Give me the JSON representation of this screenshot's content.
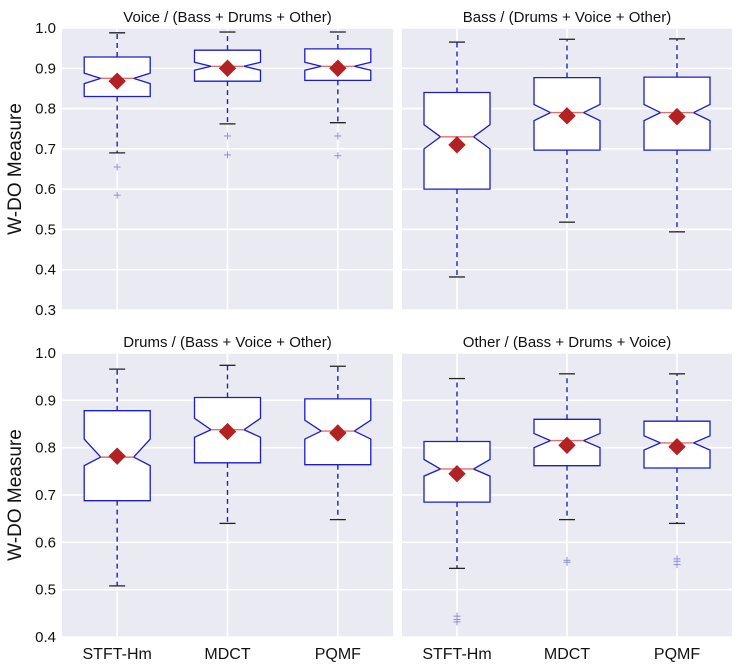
{
  "chart_data": {
    "type": "boxplot",
    "ylabel": "W-DO Measure",
    "categories": [
      "STFT-Hm",
      "MDCT",
      "PQMF"
    ],
    "colors": {
      "panel_bg": "#eaeaf2",
      "grid": "#ffffff",
      "box_edge": "#1c1cc8",
      "box_fill": "#ffffff",
      "whisker": "#1c1cc8",
      "cap": "#222222",
      "median": "#e07070",
      "mean_marker": "#b22222",
      "flier": "#8f8fd8"
    },
    "panels": [
      {
        "title": "Voice / (Bass + Drums + Other)",
        "ylim": [
          0.3,
          1.0
        ],
        "yticks": [
          "0.3",
          "0.4",
          "0.5",
          "0.6",
          "0.7",
          "0.8",
          "0.9",
          "1.0"
        ],
        "show_yticklabels": true,
        "show_xticklabels": false,
        "boxes": [
          {
            "whislo": 0.69,
            "q1": 0.83,
            "med": 0.875,
            "q3": 0.928,
            "whishi": 0.988,
            "mean": 0.868,
            "notch_lo": 0.862,
            "notch_hi": 0.888,
            "fliers": [
              0.655,
              0.585
            ]
          },
          {
            "whislo": 0.762,
            "q1": 0.868,
            "med": 0.905,
            "q3": 0.945,
            "whishi": 0.99,
            "mean": 0.9,
            "notch_lo": 0.895,
            "notch_hi": 0.915,
            "fliers": [
              0.732,
              0.685
            ]
          },
          {
            "whislo": 0.765,
            "q1": 0.87,
            "med": 0.905,
            "q3": 0.948,
            "whishi": 0.99,
            "mean": 0.9,
            "notch_lo": 0.895,
            "notch_hi": 0.915,
            "fliers": [
              0.732,
              0.683
            ]
          }
        ]
      },
      {
        "title": "Bass / (Drums + Voice + Other)",
        "ylim": [
          0.3,
          1.0
        ],
        "yticks": [
          "0.3",
          "0.4",
          "0.5",
          "0.6",
          "0.7",
          "0.8",
          "0.9",
          "1.0"
        ],
        "show_yticklabels": false,
        "show_xticklabels": false,
        "boxes": [
          {
            "whislo": 0.382,
            "q1": 0.6,
            "med": 0.73,
            "q3": 0.84,
            "whishi": 0.965,
            "mean": 0.71,
            "notch_lo": 0.7,
            "notch_hi": 0.76,
            "fliers": []
          },
          {
            "whislo": 0.518,
            "q1": 0.697,
            "med": 0.79,
            "q3": 0.877,
            "whishi": 0.972,
            "mean": 0.782,
            "notch_lo": 0.77,
            "notch_hi": 0.81,
            "fliers": []
          },
          {
            "whislo": 0.494,
            "q1": 0.697,
            "med": 0.79,
            "q3": 0.878,
            "whishi": 0.973,
            "mean": 0.78,
            "notch_lo": 0.77,
            "notch_hi": 0.81,
            "fliers": []
          }
        ]
      },
      {
        "title": "Drums / (Bass + Voice + Other)",
        "ylim": [
          0.4,
          1.0
        ],
        "yticks": [
          "0.4",
          "0.5",
          "0.6",
          "0.7",
          "0.8",
          "0.9",
          "1.0"
        ],
        "show_yticklabels": true,
        "show_xticklabels": true,
        "boxes": [
          {
            "whislo": 0.508,
            "q1": 0.688,
            "med": 0.78,
            "q3": 0.878,
            "whishi": 0.966,
            "mean": 0.782,
            "notch_lo": 0.762,
            "notch_hi": 0.818,
            "fliers": []
          },
          {
            "whislo": 0.64,
            "q1": 0.768,
            "med": 0.838,
            "q3": 0.906,
            "whishi": 0.974,
            "mean": 0.834,
            "notch_lo": 0.822,
            "notch_hi": 0.862,
            "fliers": []
          },
          {
            "whislo": 0.648,
            "q1": 0.764,
            "med": 0.835,
            "q3": 0.903,
            "whishi": 0.972,
            "mean": 0.831,
            "notch_lo": 0.818,
            "notch_hi": 0.858,
            "fliers": []
          }
        ]
      },
      {
        "title": "Other / (Bass + Drums + Voice)",
        "ylim": [
          0.4,
          1.0
        ],
        "yticks": [
          "0.4",
          "0.5",
          "0.6",
          "0.7",
          "0.8",
          "0.9",
          "1.0"
        ],
        "show_yticklabels": false,
        "show_xticklabels": true,
        "boxes": [
          {
            "whislo": 0.545,
            "q1": 0.685,
            "med": 0.755,
            "q3": 0.813,
            "whishi": 0.946,
            "mean": 0.745,
            "notch_lo": 0.74,
            "notch_hi": 0.775,
            "fliers": [
              0.444,
              0.437,
              0.432
            ]
          },
          {
            "whislo": 0.648,
            "q1": 0.762,
            "med": 0.815,
            "q3": 0.86,
            "whishi": 0.956,
            "mean": 0.805,
            "notch_lo": 0.8,
            "notch_hi": 0.83,
            "fliers": [
              0.562,
              0.558
            ]
          },
          {
            "whislo": 0.64,
            "q1": 0.757,
            "med": 0.81,
            "q3": 0.856,
            "whishi": 0.956,
            "mean": 0.802,
            "notch_lo": 0.795,
            "notch_hi": 0.825,
            "fliers": [
              0.565,
              0.56,
              0.553
            ]
          }
        ]
      }
    ]
  }
}
